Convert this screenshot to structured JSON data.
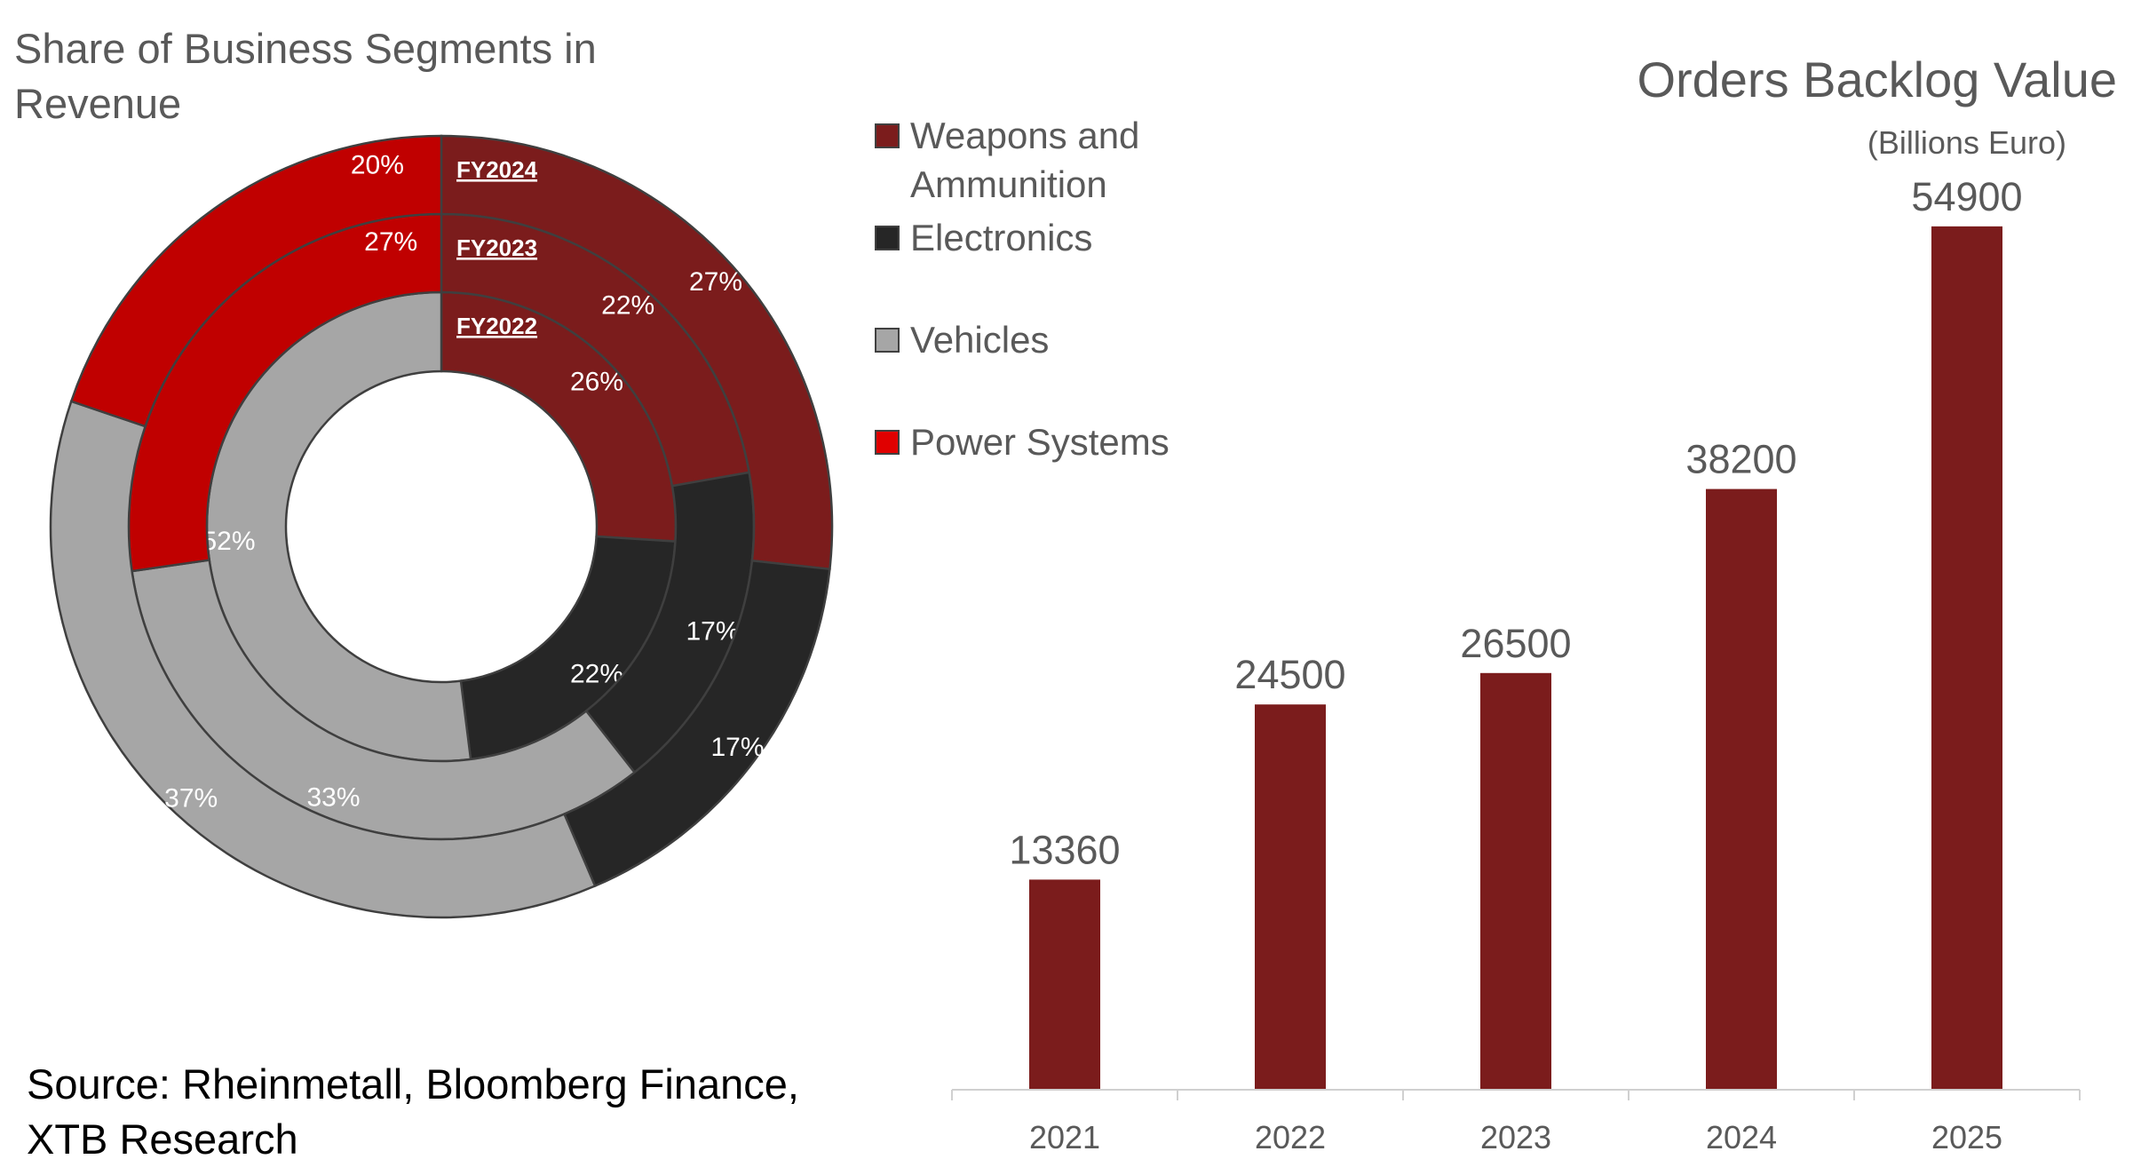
{
  "donut_title": "Share of Business Segments in Revenue",
  "source": "Source: Rheinmetall, Bloomberg Finance, XTB Research",
  "legend": [
    {
      "label": "Weapons and Ammunition",
      "color": "#7b1c1c"
    },
    {
      "label": "Electronics",
      "color": "#262626"
    },
    {
      "label": "Vehicles",
      "color": "#a6a6a6"
    },
    {
      "label": "Power Systems",
      "color": "#e00000"
    }
  ],
  "bar_title": "Orders Backlog Value",
  "bar_subtitle": "(Billions Euro)",
  "chart_data": [
    {
      "type": "donut",
      "title": "Share of Business Segments in Revenue",
      "categories": [
        "Weapons and Ammunition",
        "Electronics",
        "Vehicles",
        "Power Systems"
      ],
      "colors": [
        "#7b1c1c",
        "#262626",
        "#a6a6a6",
        "#c00000"
      ],
      "rings": [
        {
          "name": "FY2022",
          "values": [
            26,
            22,
            52,
            null
          ],
          "labels": [
            "26%",
            "22%",
            "52%",
            ""
          ]
        },
        {
          "name": "FY2023",
          "values": [
            22,
            17,
            33,
            27
          ],
          "labels": [
            "22%",
            "17%",
            "33%",
            "27%"
          ]
        },
        {
          "name": "FY2024",
          "values": [
            27,
            17,
            37,
            20
          ],
          "labels": [
            "27%",
            "17%",
            "37%",
            "20%"
          ]
        }
      ]
    },
    {
      "type": "bar",
      "title": "Orders Backlog Value",
      "subtitle": "(Billions Euro)",
      "categories": [
        "2021",
        "2022",
        "2023",
        "2024",
        "2025"
      ],
      "values": [
        13360,
        24500,
        26500,
        38200,
        54900
      ],
      "color": "#7b1c1c",
      "ylim": [
        0,
        58000
      ],
      "grid": false
    }
  ]
}
